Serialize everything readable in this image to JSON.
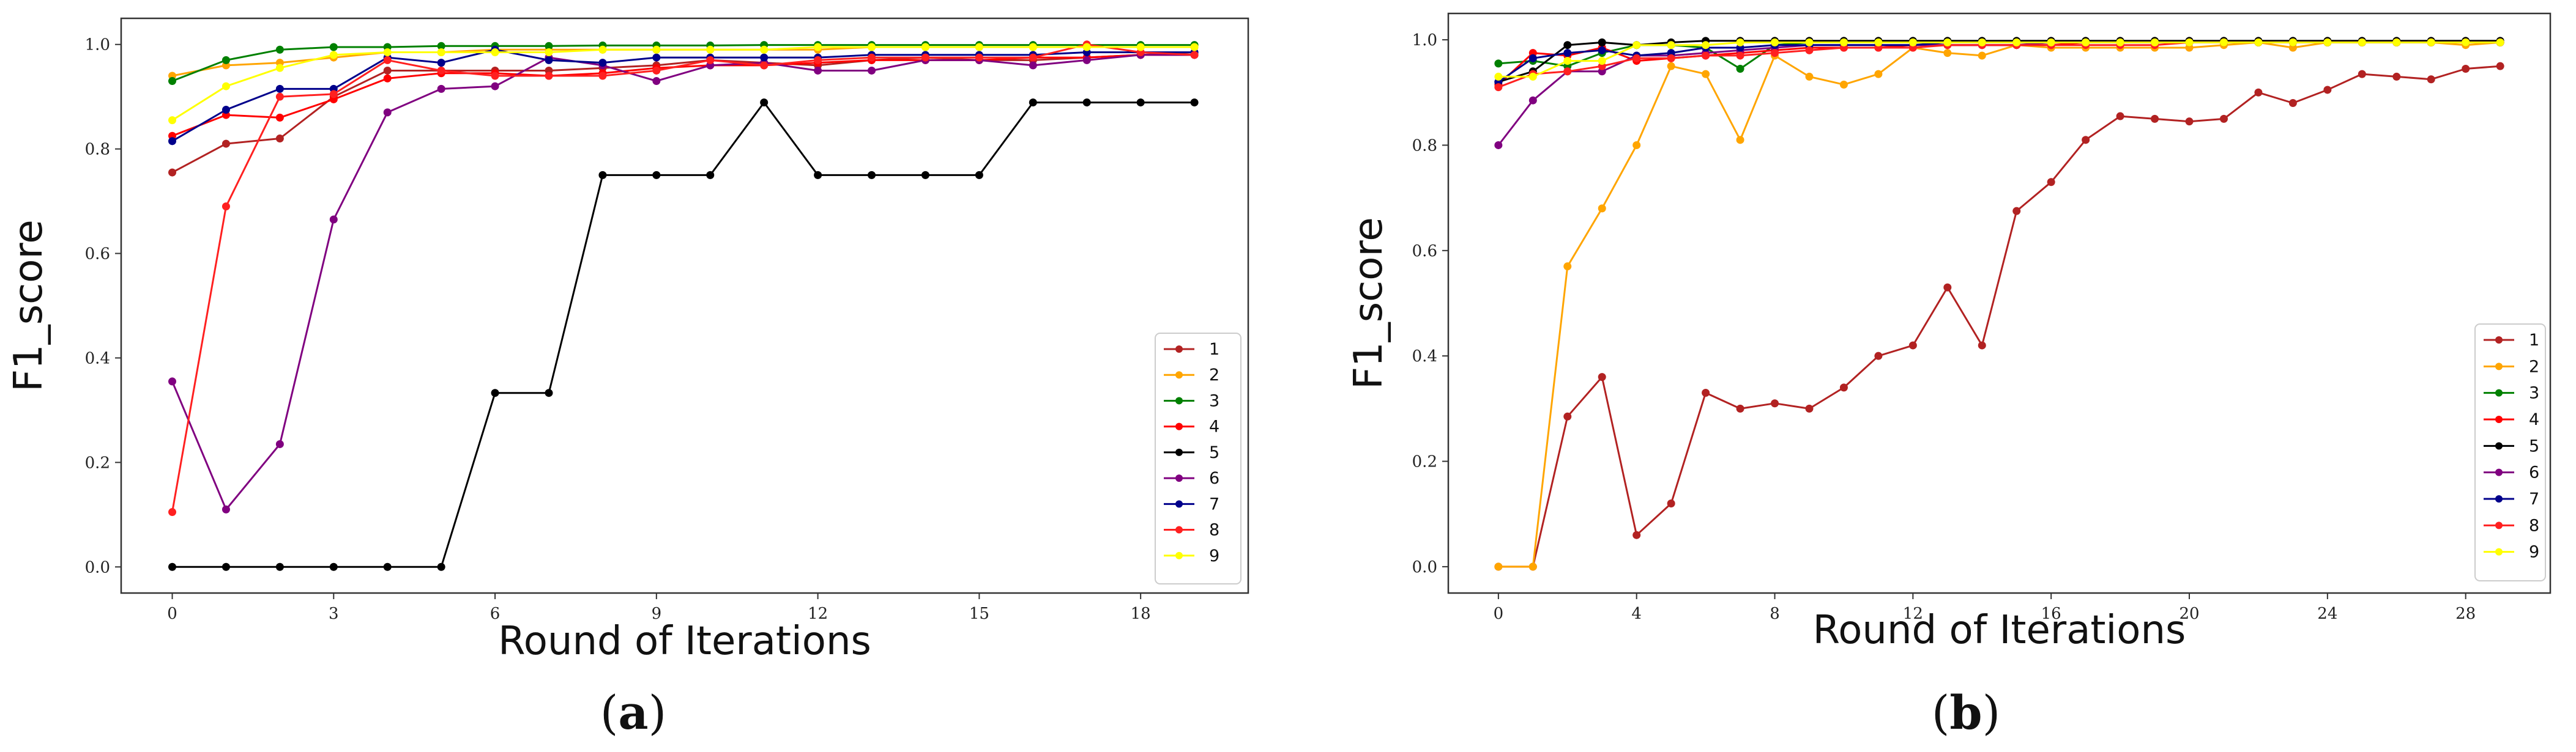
{
  "figure": {
    "panels": [
      {
        "label_open": "(",
        "label_letter": "a",
        "label_close": ")"
      },
      {
        "label_open": "(",
        "label_letter": "b",
        "label_close": ")"
      }
    ]
  },
  "chart_data": [
    {
      "type": "line",
      "title": "",
      "xlabel": "Round of Iterations",
      "ylabel": "F1_score",
      "xlim": [
        -0.95,
        20.0
      ],
      "ylim": [
        -0.05,
        1.05
      ],
      "xticks": [
        0,
        3,
        6,
        9,
        12,
        15,
        18
      ],
      "yticks": [
        0.0,
        0.2,
        0.4,
        0.6,
        0.8,
        1.0
      ],
      "legend": "bottom-right",
      "grid": false,
      "x": [
        0,
        1,
        2,
        3,
        4,
        5,
        6,
        7,
        8,
        9,
        10,
        11,
        12,
        13,
        14,
        15,
        16,
        17,
        18,
        19
      ],
      "series": [
        {
          "name": "1",
          "color": "#b22222",
          "values": [
            0.755,
            0.81,
            0.82,
            0.9,
            0.95,
            0.95,
            0.95,
            0.95,
            0.955,
            0.96,
            0.97,
            0.965,
            0.96,
            0.97,
            0.975,
            0.97,
            0.97,
            0.975,
            0.98,
            0.985
          ]
        },
        {
          "name": "2",
          "color": "#ffa500",
          "values": [
            0.94,
            0.96,
            0.965,
            0.975,
            0.985,
            0.985,
            0.99,
            0.99,
            0.99,
            0.99,
            0.99,
            0.99,
            0.99,
            0.995,
            0.995,
            0.995,
            0.995,
            0.995,
            0.995,
            0.995
          ]
        },
        {
          "name": "3",
          "color": "#008000",
          "values": [
            0.93,
            0.97,
            0.99,
            0.995,
            0.995,
            0.997,
            0.997,
            0.997,
            0.998,
            0.998,
            0.998,
            0.999,
            0.999,
            0.999,
            0.999,
            0.999,
            0.999,
            0.999,
            0.999,
            0.999
          ]
        },
        {
          "name": "4",
          "color": "#ff0000",
          "values": [
            0.825,
            0.865,
            0.86,
            0.895,
            0.935,
            0.945,
            0.945,
            0.94,
            0.945,
            0.955,
            0.96,
            0.96,
            0.965,
            0.97,
            0.97,
            0.97,
            0.975,
            0.975,
            0.98,
            0.98
          ]
        },
        {
          "name": "5",
          "color": "#000000",
          "values": [
            0.0,
            0.0,
            0.0,
            0.0,
            0.0,
            0.0,
            0.333,
            0.333,
            0.75,
            0.75,
            0.75,
            0.889,
            0.75,
            0.75,
            0.75,
            0.75,
            0.889,
            0.889,
            0.889,
            0.889
          ]
        },
        {
          "name": "6",
          "color": "#800080",
          "values": [
            0.355,
            0.11,
            0.235,
            0.665,
            0.87,
            0.915,
            0.92,
            0.975,
            0.96,
            0.93,
            0.96,
            0.965,
            0.95,
            0.95,
            0.97,
            0.97,
            0.96,
            0.97,
            0.98,
            0.98
          ]
        },
        {
          "name": "7",
          "color": "#00008b",
          "values": [
            0.815,
            0.875,
            0.915,
            0.915,
            0.975,
            0.965,
            0.99,
            0.97,
            0.965,
            0.975,
            0.975,
            0.975,
            0.975,
            0.98,
            0.98,
            0.98,
            0.98,
            0.985,
            0.985,
            0.985
          ]
        },
        {
          "name": "8",
          "color": "#ff2020",
          "values": [
            0.105,
            0.69,
            0.9,
            0.905,
            0.97,
            0.95,
            0.94,
            0.94,
            0.94,
            0.95,
            0.97,
            0.96,
            0.97,
            0.975,
            0.975,
            0.975,
            0.975,
            1.0,
            0.985,
            0.98
          ]
        },
        {
          "name": "9",
          "color": "#ffff00",
          "values": [
            0.855,
            0.92,
            0.955,
            0.98,
            0.985,
            0.985,
            0.985,
            0.985,
            0.99,
            0.99,
            0.99,
            0.99,
            0.995,
            0.995,
            0.995,
            0.995,
            0.995,
            0.995,
            0.995,
            0.995
          ]
        }
      ]
    },
    {
      "type": "line",
      "title": "",
      "xlabel": "Round of Iterations",
      "ylabel": "F1_score",
      "xlim": [
        -1.45,
        30.45
      ],
      "ylim": [
        -0.05,
        1.05
      ],
      "xticks": [
        0,
        4,
        8,
        12,
        16,
        20,
        24,
        28
      ],
      "yticks": [
        0.0,
        0.2,
        0.4,
        0.6,
        0.8,
        1.0
      ],
      "legend": "bottom-right",
      "grid": false,
      "x": [
        0,
        1,
        2,
        3,
        4,
        5,
        6,
        7,
        8,
        9,
        10,
        11,
        12,
        13,
        14,
        15,
        16,
        17,
        18,
        19,
        20,
        21,
        22,
        23,
        24,
        25,
        26,
        27,
        28,
        29
      ],
      "series": [
        {
          "name": "1",
          "color": "#b22222",
          "values": [
            0.0,
            0.0,
            0.285,
            0.36,
            0.06,
            0.12,
            0.33,
            0.3,
            0.31,
            0.3,
            0.34,
            0.4,
            0.42,
            0.53,
            0.42,
            0.675,
            0.73,
            0.81,
            0.855,
            0.85,
            0.845,
            0.85,
            0.9,
            0.88,
            0.905,
            0.935,
            0.93,
            0.925,
            0.945,
            0.95
          ]
        },
        {
          "name": "2",
          "color": "#ffa500",
          "values": [
            0.0,
            0.0,
            0.57,
            0.68,
            0.8,
            0.95,
            0.935,
            0.81,
            0.97,
            0.93,
            0.915,
            0.935,
            0.985,
            0.975,
            0.97,
            0.99,
            0.985,
            0.985,
            0.985,
            0.985,
            0.985,
            0.99,
            0.995,
            0.985,
            0.995,
            0.995,
            0.995,
            0.995,
            0.99,
            0.995
          ]
        },
        {
          "name": "3",
          "color": "#008000",
          "values": [
            0.955,
            0.96,
            0.95,
            0.975,
            0.99,
            0.99,
            0.985,
            0.945,
            0.99,
            0.995,
            0.995,
            0.995,
            0.995,
            0.995,
            0.995,
            0.995,
            0.995,
            0.995,
            0.995,
            0.995,
            0.995,
            0.995,
            0.995,
            0.995,
            0.995,
            0.995,
            0.995,
            0.995,
            0.995,
            0.995
          ]
        },
        {
          "name": "4",
          "color": "#ff0000",
          "values": [
            0.915,
            0.975,
            0.97,
            0.985,
            0.96,
            0.965,
            0.97,
            0.975,
            0.98,
            0.985,
            0.985,
            0.985,
            0.99,
            0.99,
            0.99,
            0.99,
            0.99,
            0.995,
            0.995,
            0.995,
            0.995,
            0.995,
            0.995,
            0.995,
            0.995,
            0.995,
            0.995,
            0.995,
            0.995,
            0.995
          ]
        },
        {
          "name": "5",
          "color": "#000000",
          "values": [
            0.92,
            0.94,
            0.99,
            0.995,
            0.99,
            0.995,
            0.998,
            0.998,
            0.998,
            0.998,
            0.998,
            0.998,
            0.998,
            0.998,
            0.998,
            0.998,
            0.998,
            0.998,
            0.998,
            0.998,
            0.998,
            0.998,
            0.998,
            0.998,
            0.998,
            0.998,
            0.998,
            0.998,
            0.998,
            0.998
          ]
        },
        {
          "name": "6",
          "color": "#800080",
          "values": [
            0.8,
            0.885,
            0.94,
            0.94,
            0.97,
            0.97,
            0.975,
            0.98,
            0.985,
            0.99,
            0.99,
            0.99,
            0.99,
            0.99,
            0.99,
            0.99,
            0.995,
            0.995,
            0.995,
            0.995,
            0.995,
            0.995,
            0.995,
            0.995,
            0.995,
            0.995,
            0.995,
            0.995,
            0.995,
            0.995
          ]
        },
        {
          "name": "7",
          "color": "#00008b",
          "values": [
            0.92,
            0.965,
            0.975,
            0.98,
            0.97,
            0.975,
            0.985,
            0.985,
            0.99,
            0.99,
            0.99,
            0.99,
            0.99,
            0.995,
            0.995,
            0.995,
            0.995,
            0.995,
            0.995,
            0.995,
            0.995,
            0.995,
            0.995,
            0.995,
            0.995,
            0.995,
            0.995,
            0.995,
            0.995,
            0.995
          ]
        },
        {
          "name": "8",
          "color": "#ff2020",
          "values": [
            0.91,
            0.935,
            0.94,
            0.95,
            0.965,
            0.965,
            0.97,
            0.97,
            0.975,
            0.98,
            0.985,
            0.985,
            0.985,
            0.99,
            0.99,
            0.99,
            0.99,
            0.99,
            0.99,
            0.99,
            0.995,
            0.995,
            0.995,
            0.995,
            0.995,
            0.995,
            0.995,
            0.995,
            0.995,
            0.995
          ]
        },
        {
          "name": "9",
          "color": "#ffff00",
          "values": [
            0.93,
            0.93,
            0.96,
            0.96,
            0.99,
            0.99,
            0.99,
            0.995,
            0.995,
            0.995,
            0.995,
            0.995,
            0.995,
            0.995,
            0.995,
            0.995,
            0.995,
            0.995,
            0.995,
            0.995,
            0.995,
            0.995,
            0.995,
            0.995,
            0.995,
            0.995,
            0.995,
            0.995,
            0.995,
            0.995
          ]
        }
      ]
    }
  ]
}
